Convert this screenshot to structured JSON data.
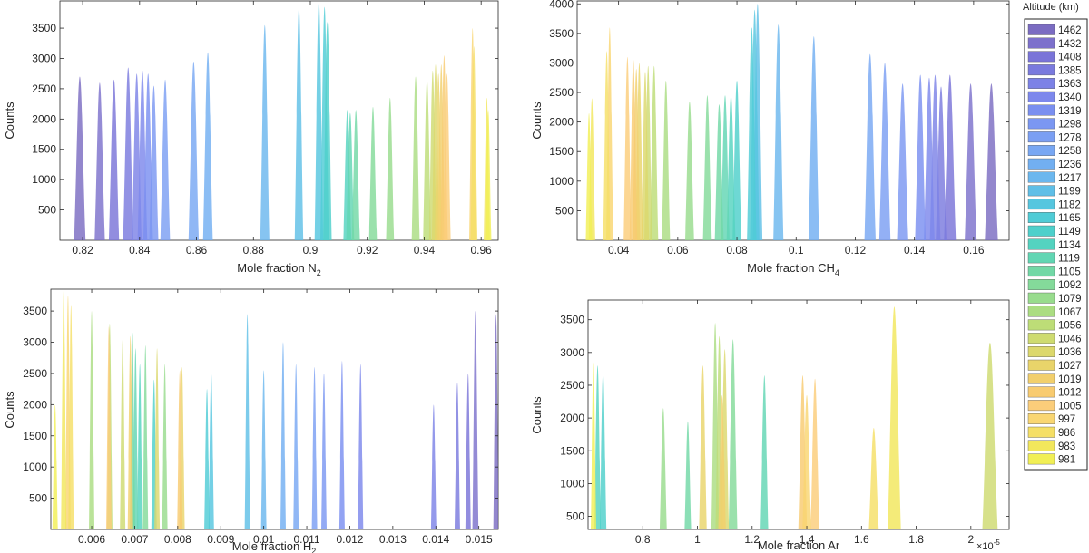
{
  "legend": {
    "title": "Altitude (km)",
    "altitudes": [
      1462,
      1432,
      1408,
      1385,
      1363,
      1340,
      1319,
      1298,
      1278,
      1258,
      1236,
      1217,
      1199,
      1182,
      1165,
      1149,
      1134,
      1119,
      1105,
      1092,
      1079,
      1067,
      1056,
      1046,
      1036,
      1027,
      1019,
      1012,
      1005,
      997,
      986,
      983,
      981
    ],
    "colors": [
      "#7b6cc2",
      "#7d71cc",
      "#7a74d8",
      "#7a7ade",
      "#7c82e6",
      "#7d88ec",
      "#7a8ff0",
      "#7b97f2",
      "#7b9ff3",
      "#78a7f3",
      "#72aff1",
      "#6bb7ee",
      "#5fbfe7",
      "#56c6df",
      "#4fccd6",
      "#4ed0cb",
      "#54d3c0",
      "#61d6b3",
      "#72d8a6",
      "#84da9a",
      "#98dc8d",
      "#abdd82",
      "#bddd77",
      "#cedb70",
      "#dcd86c",
      "#e9d46a",
      "#f2cf6c",
      "#f8cb70",
      "#fbcd7a",
      "#f9d672",
      "#f5df66",
      "#f2e75c",
      "#f1ef55"
    ]
  },
  "chart_data": [
    {
      "id": "n2",
      "type": "histogram",
      "xlabel": "Mole fraction N",
      "xlabel_sub": "2",
      "ylabel": "Counts",
      "xlim": [
        0.812,
        0.966
      ],
      "ylim": [
        0,
        3950
      ],
      "xticks": [
        0.82,
        0.84,
        0.86,
        0.88,
        0.9,
        0.92,
        0.94,
        0.96
      ],
      "xtick_labels": [
        "0.82",
        "0.84",
        "0.86",
        "0.88",
        "0.9",
        "0.92",
        "0.94",
        "0.96"
      ],
      "yticks": [
        500,
        1000,
        1500,
        2000,
        2500,
        3000,
        3500
      ],
      "ytick_labels": [
        "500",
        "1000",
        "1500",
        "2000",
        "2500",
        "3000",
        "3500"
      ],
      "peaks": [
        {
          "alt": 1462,
          "x": 0.819,
          "h": 2700,
          "w": 0.002
        },
        {
          "alt": 1432,
          "x": 0.826,
          "h": 2600,
          "w": 0.0018
        },
        {
          "alt": 1408,
          "x": 0.831,
          "h": 2650,
          "w": 0.0018
        },
        {
          "alt": 1385,
          "x": 0.836,
          "h": 2850,
          "w": 0.0018
        },
        {
          "alt": 1363,
          "x": 0.839,
          "h": 2750,
          "w": 0.0017
        },
        {
          "alt": 1340,
          "x": 0.841,
          "h": 2800,
          "w": 0.0017
        },
        {
          "alt": 1319,
          "x": 0.843,
          "h": 2750,
          "w": 0.0017
        },
        {
          "alt": 1298,
          "x": 0.845,
          "h": 2550,
          "w": 0.0016
        },
        {
          "alt": 1278,
          "x": 0.849,
          "h": 2650,
          "w": 0.0017
        },
        {
          "alt": 1258,
          "x": 0.859,
          "h": 2950,
          "w": 0.0018
        },
        {
          "alt": 1236,
          "x": 0.864,
          "h": 3100,
          "w": 0.0017
        },
        {
          "alt": 1217,
          "x": 0.884,
          "h": 3550,
          "w": 0.0016
        },
        {
          "alt": 1199,
          "x": 0.896,
          "h": 3850,
          "w": 0.0015
        },
        {
          "alt": 1182,
          "x": 0.903,
          "h": 3950,
          "w": 0.0015
        },
        {
          "alt": 1165,
          "x": 0.905,
          "h": 3850,
          "w": 0.0015
        },
        {
          "alt": 1149,
          "x": 0.906,
          "h": 3600,
          "w": 0.0015
        },
        {
          "alt": 1134,
          "x": 0.913,
          "h": 2150,
          "w": 0.0014
        },
        {
          "alt": 1119,
          "x": 0.914,
          "h": 2100,
          "w": 0.0014
        },
        {
          "alt": 1105,
          "x": 0.916,
          "h": 2150,
          "w": 0.0014
        },
        {
          "alt": 1092,
          "x": 0.922,
          "h": 2200,
          "w": 0.0014
        },
        {
          "alt": 1079,
          "x": 0.928,
          "h": 2350,
          "w": 0.0014
        },
        {
          "alt": 1067,
          "x": 0.937,
          "h": 2700,
          "w": 0.0014
        },
        {
          "alt": 1056,
          "x": 0.941,
          "h": 2650,
          "w": 0.0014
        },
        {
          "alt": 1046,
          "x": 0.943,
          "h": 2800,
          "w": 0.0013
        },
        {
          "alt": 1036,
          "x": 0.944,
          "h": 2900,
          "w": 0.0013
        },
        {
          "alt": 1027,
          "x": 0.945,
          "h": 2750,
          "w": 0.0013
        },
        {
          "alt": 1019,
          "x": 0.946,
          "h": 2900,
          "w": 0.0013
        },
        {
          "alt": 1012,
          "x": 0.947,
          "h": 3050,
          "w": 0.0013
        },
        {
          "alt": 1005,
          "x": 0.948,
          "h": 2750,
          "w": 0.0013
        },
        {
          "alt": 997,
          "x": 0.957,
          "h": 3500,
          "w": 0.0012
        },
        {
          "alt": 986,
          "x": 0.9575,
          "h": 3200,
          "w": 0.0012
        },
        {
          "alt": 983,
          "x": 0.962,
          "h": 2350,
          "w": 0.0011
        },
        {
          "alt": 981,
          "x": 0.9625,
          "h": 2150,
          "w": 0.0011
        }
      ]
    },
    {
      "id": "ch4",
      "type": "histogram",
      "xlabel": "Mole fraction  CH",
      "xlabel_sub": "4",
      "ylabel": "Counts",
      "xlim": [
        0.026,
        0.172
      ],
      "ylim": [
        0,
        4050
      ],
      "xticks": [
        0.04,
        0.06,
        0.08,
        0.1,
        0.12,
        0.14,
        0.16
      ],
      "xtick_labels": [
        "0.04",
        "0.06",
        "0.08",
        "0.1",
        "0.12",
        "0.14",
        "0.16"
      ],
      "yticks": [
        500,
        1000,
        1500,
        2000,
        2500,
        3000,
        3500,
        4000
      ],
      "ytick_labels": [
        "500",
        "1000",
        "1500",
        "2000",
        "2500",
        "3000",
        "3500",
        "4000"
      ],
      "peaks": [
        {
          "alt": 1462,
          "x": 0.166,
          "h": 2650,
          "w": 0.0022
        },
        {
          "alt": 1432,
          "x": 0.159,
          "h": 2650,
          "w": 0.002
        },
        {
          "alt": 1408,
          "x": 0.152,
          "h": 2800,
          "w": 0.002
        },
        {
          "alt": 1385,
          "x": 0.149,
          "h": 2600,
          "w": 0.0018
        },
        {
          "alt": 1363,
          "x": 0.147,
          "h": 2800,
          "w": 0.0018
        },
        {
          "alt": 1340,
          "x": 0.145,
          "h": 2750,
          "w": 0.0018
        },
        {
          "alt": 1319,
          "x": 0.142,
          "h": 2800,
          "w": 0.0018
        },
        {
          "alt": 1298,
          "x": 0.136,
          "h": 2650,
          "w": 0.0019
        },
        {
          "alt": 1278,
          "x": 0.13,
          "h": 3000,
          "w": 0.0019
        },
        {
          "alt": 1258,
          "x": 0.125,
          "h": 3150,
          "w": 0.0019
        },
        {
          "alt": 1236,
          "x": 0.106,
          "h": 3450,
          "w": 0.0018
        },
        {
          "alt": 1217,
          "x": 0.094,
          "h": 3650,
          "w": 0.0017
        },
        {
          "alt": 1199,
          "x": 0.087,
          "h": 4000,
          "w": 0.0016
        },
        {
          "alt": 1182,
          "x": 0.086,
          "h": 3900,
          "w": 0.0016
        },
        {
          "alt": 1165,
          "x": 0.085,
          "h": 3600,
          "w": 0.0016
        },
        {
          "alt": 1149,
          "x": 0.08,
          "h": 2700,
          "w": 0.0015
        },
        {
          "alt": 1134,
          "x": 0.078,
          "h": 2450,
          "w": 0.0015
        },
        {
          "alt": 1119,
          "x": 0.076,
          "h": 2450,
          "w": 0.0015
        },
        {
          "alt": 1105,
          "x": 0.074,
          "h": 2300,
          "w": 0.0015
        },
        {
          "alt": 1092,
          "x": 0.07,
          "h": 2450,
          "w": 0.0015
        },
        {
          "alt": 1079,
          "x": 0.064,
          "h": 2350,
          "w": 0.0015
        },
        {
          "alt": 1067,
          "x": 0.056,
          "h": 2700,
          "w": 0.0014
        },
        {
          "alt": 1056,
          "x": 0.052,
          "h": 2950,
          "w": 0.0014
        },
        {
          "alt": 1046,
          "x": 0.05,
          "h": 2950,
          "w": 0.0013
        },
        {
          "alt": 1036,
          "x": 0.049,
          "h": 2850,
          "w": 0.0013
        },
        {
          "alt": 1027,
          "x": 0.047,
          "h": 3000,
          "w": 0.0013
        },
        {
          "alt": 1019,
          "x": 0.046,
          "h": 2900,
          "w": 0.0013
        },
        {
          "alt": 1012,
          "x": 0.045,
          "h": 3050,
          "w": 0.0013
        },
        {
          "alt": 1005,
          "x": 0.043,
          "h": 3100,
          "w": 0.0013
        },
        {
          "alt": 997,
          "x": 0.037,
          "h": 3600,
          "w": 0.0012
        },
        {
          "alt": 986,
          "x": 0.036,
          "h": 3200,
          "w": 0.0012
        },
        {
          "alt": 983,
          "x": 0.031,
          "h": 2400,
          "w": 0.0011
        },
        {
          "alt": 981,
          "x": 0.03,
          "h": 2150,
          "w": 0.0011
        }
      ]
    },
    {
      "id": "h2",
      "type": "histogram",
      "xlabel": "Mole fraction  H",
      "xlabel_sub": "2",
      "ylabel": "Counts",
      "xlim": [
        0.00505,
        0.01545
      ],
      "ylim": [
        0,
        3850
      ],
      "xticks": [
        0.006,
        0.007,
        0.008,
        0.009,
        0.01,
        0.011,
        0.012,
        0.013,
        0.014,
        0.015
      ],
      "xtick_labels": [
        "0.006",
        "0.007",
        "0.008",
        "0.009",
        "0.01",
        "0.011",
        "0.012",
        "0.013",
        "0.014",
        "0.015"
      ],
      "yticks": [
        500,
        1000,
        1500,
        2000,
        2500,
        3000,
        3500
      ],
      "ytick_labels": [
        "500",
        "1000",
        "1500",
        "2000",
        "2500",
        "3000",
        "3500"
      ],
      "peaks": [
        {
          "alt": 1462,
          "x": 0.0154,
          "h": 3450,
          "w": 6e-05
        },
        {
          "alt": 1432,
          "x": 0.01492,
          "h": 3500,
          "w": 7e-05
        },
        {
          "alt": 1408,
          "x": 0.01475,
          "h": 2500,
          "w": 6e-05
        },
        {
          "alt": 1385,
          "x": 0.0145,
          "h": 2350,
          "w": 6e-05
        },
        {
          "alt": 1363,
          "x": 0.01395,
          "h": 2000,
          "w": 6e-05
        },
        {
          "alt": 1340,
          "x": 0.01225,
          "h": 2650,
          "w": 6e-05
        },
        {
          "alt": 1319,
          "x": 0.01182,
          "h": 2700,
          "w": 6e-05
        },
        {
          "alt": 1298,
          "x": 0.0114,
          "h": 2500,
          "w": 6e-05
        },
        {
          "alt": 1278,
          "x": 0.01118,
          "h": 2600,
          "w": 6e-05
        },
        {
          "alt": 1258,
          "x": 0.01075,
          "h": 2650,
          "w": 6e-05
        },
        {
          "alt": 1236,
          "x": 0.01045,
          "h": 3000,
          "w": 6e-05
        },
        {
          "alt": 1217,
          "x": 0.01,
          "h": 2550,
          "w": 6e-05
        },
        {
          "alt": 1199,
          "x": 0.00962,
          "h": 3450,
          "w": 5e-05
        },
        {
          "alt": 1182,
          "x": 0.00878,
          "h": 2500,
          "w": 5e-05
        },
        {
          "alt": 1165,
          "x": 0.00868,
          "h": 2250,
          "w": 5e-05
        },
        {
          "alt": 1149,
          "x": 0.00745,
          "h": 2400,
          "w": 5e-05
        },
        {
          "alt": 1134,
          "x": 0.00712,
          "h": 2650,
          "w": 5e-05
        },
        {
          "alt": 1119,
          "x": 0.00702,
          "h": 2900,
          "w": 5e-05
        },
        {
          "alt": 1105,
          "x": 0.00695,
          "h": 3150,
          "w": 5e-05
        },
        {
          "alt": 1092,
          "x": 0.00725,
          "h": 2950,
          "w": 5e-05
        },
        {
          "alt": 1079,
          "x": 0.0077,
          "h": 2650,
          "w": 5e-05
        },
        {
          "alt": 1067,
          "x": 0.006,
          "h": 3500,
          "w": 5e-05
        },
        {
          "alt": 1056,
          "x": 0.00642,
          "h": 3300,
          "w": 5e-05
        },
        {
          "alt": 1046,
          "x": 0.00672,
          "h": 3050,
          "w": 5e-05
        },
        {
          "alt": 1036,
          "x": 0.00752,
          "h": 2900,
          "w": 5e-05
        },
        {
          "alt": 1027,
          "x": 0.0081,
          "h": 2600,
          "w": 5e-05
        },
        {
          "alt": 1019,
          "x": 0.0069,
          "h": 3100,
          "w": 5e-05
        },
        {
          "alt": 1012,
          "x": 0.00805,
          "h": 2550,
          "w": 5e-05
        },
        {
          "alt": 1005,
          "x": 0.0064,
          "h": 3250,
          "w": 5e-05
        },
        {
          "alt": 997,
          "x": 0.00545,
          "h": 3750,
          "w": 5e-05
        },
        {
          "alt": 986,
          "x": 0.00552,
          "h": 3600,
          "w": 5e-05
        },
        {
          "alt": 983,
          "x": 0.00535,
          "h": 3850,
          "w": 5e-05
        },
        {
          "alt": 981,
          "x": 0.00515,
          "h": 2000,
          "w": 5e-05
        }
      ]
    },
    {
      "id": "ar",
      "type": "histogram",
      "xlabel": "Mole fraction  Ar",
      "xlabel_sub": "",
      "ylabel": "Counts",
      "exponent_label": "×10",
      "exponent_power": "-5",
      "xlim": [
        0.6,
        2.14
      ],
      "ylim": [
        300,
        3800
      ],
      "xticks": [
        0.8,
        1.0,
        1.2,
        1.4,
        1.6,
        1.8,
        2.0
      ],
      "xtick_labels": [
        "0.8",
        "1",
        "1.2",
        "1.4",
        "1.6",
        "1.8",
        "2"
      ],
      "yticks": [
        500,
        1000,
        1500,
        2000,
        2500,
        3000,
        3500
      ],
      "ytick_labels": [
        "500",
        "1000",
        "1500",
        "2000",
        "2500",
        "3000",
        "3500"
      ],
      "peaks": [
        {
          "alt": 1046,
          "x": 2.07,
          "h": 3150,
          "w": 0.028
        },
        {
          "alt": 1079,
          "x": 0.875,
          "h": 2150,
          "w": 0.013
        },
        {
          "alt": 1105,
          "x": 0.965,
          "h": 1950,
          "w": 0.012
        },
        {
          "alt": 1119,
          "x": 1.245,
          "h": 2650,
          "w": 0.014
        },
        {
          "alt": 1134,
          "x": 0.635,
          "h": 2800,
          "w": 0.012
        },
        {
          "alt": 1149,
          "x": 0.655,
          "h": 2700,
          "w": 0.012
        },
        {
          "alt": 1092,
          "x": 1.13,
          "h": 3200,
          "w": 0.016
        },
        {
          "alt": 1067,
          "x": 1.065,
          "h": 3450,
          "w": 0.014
        },
        {
          "alt": 1056,
          "x": 1.08,
          "h": 3250,
          "w": 0.014
        },
        {
          "alt": 1036,
          "x": 1.1,
          "h": 3050,
          "w": 0.015
        },
        {
          "alt": 1027,
          "x": 1.02,
          "h": 2800,
          "w": 0.014
        },
        {
          "alt": 1019,
          "x": 1.09,
          "h": 2350,
          "w": 0.014
        },
        {
          "alt": 1012,
          "x": 1.385,
          "h": 2650,
          "w": 0.016
        },
        {
          "alt": 1005,
          "x": 1.43,
          "h": 2600,
          "w": 0.016
        },
        {
          "alt": 997,
          "x": 1.4,
          "h": 2350,
          "w": 0.016
        },
        {
          "alt": 986,
          "x": 1.645,
          "h": 1850,
          "w": 0.018
        },
        {
          "alt": 983,
          "x": 1.72,
          "h": 3700,
          "w": 0.024
        },
        {
          "alt": 981,
          "x": 0.62,
          "h": 2850,
          "w": 0.01
        }
      ]
    }
  ]
}
